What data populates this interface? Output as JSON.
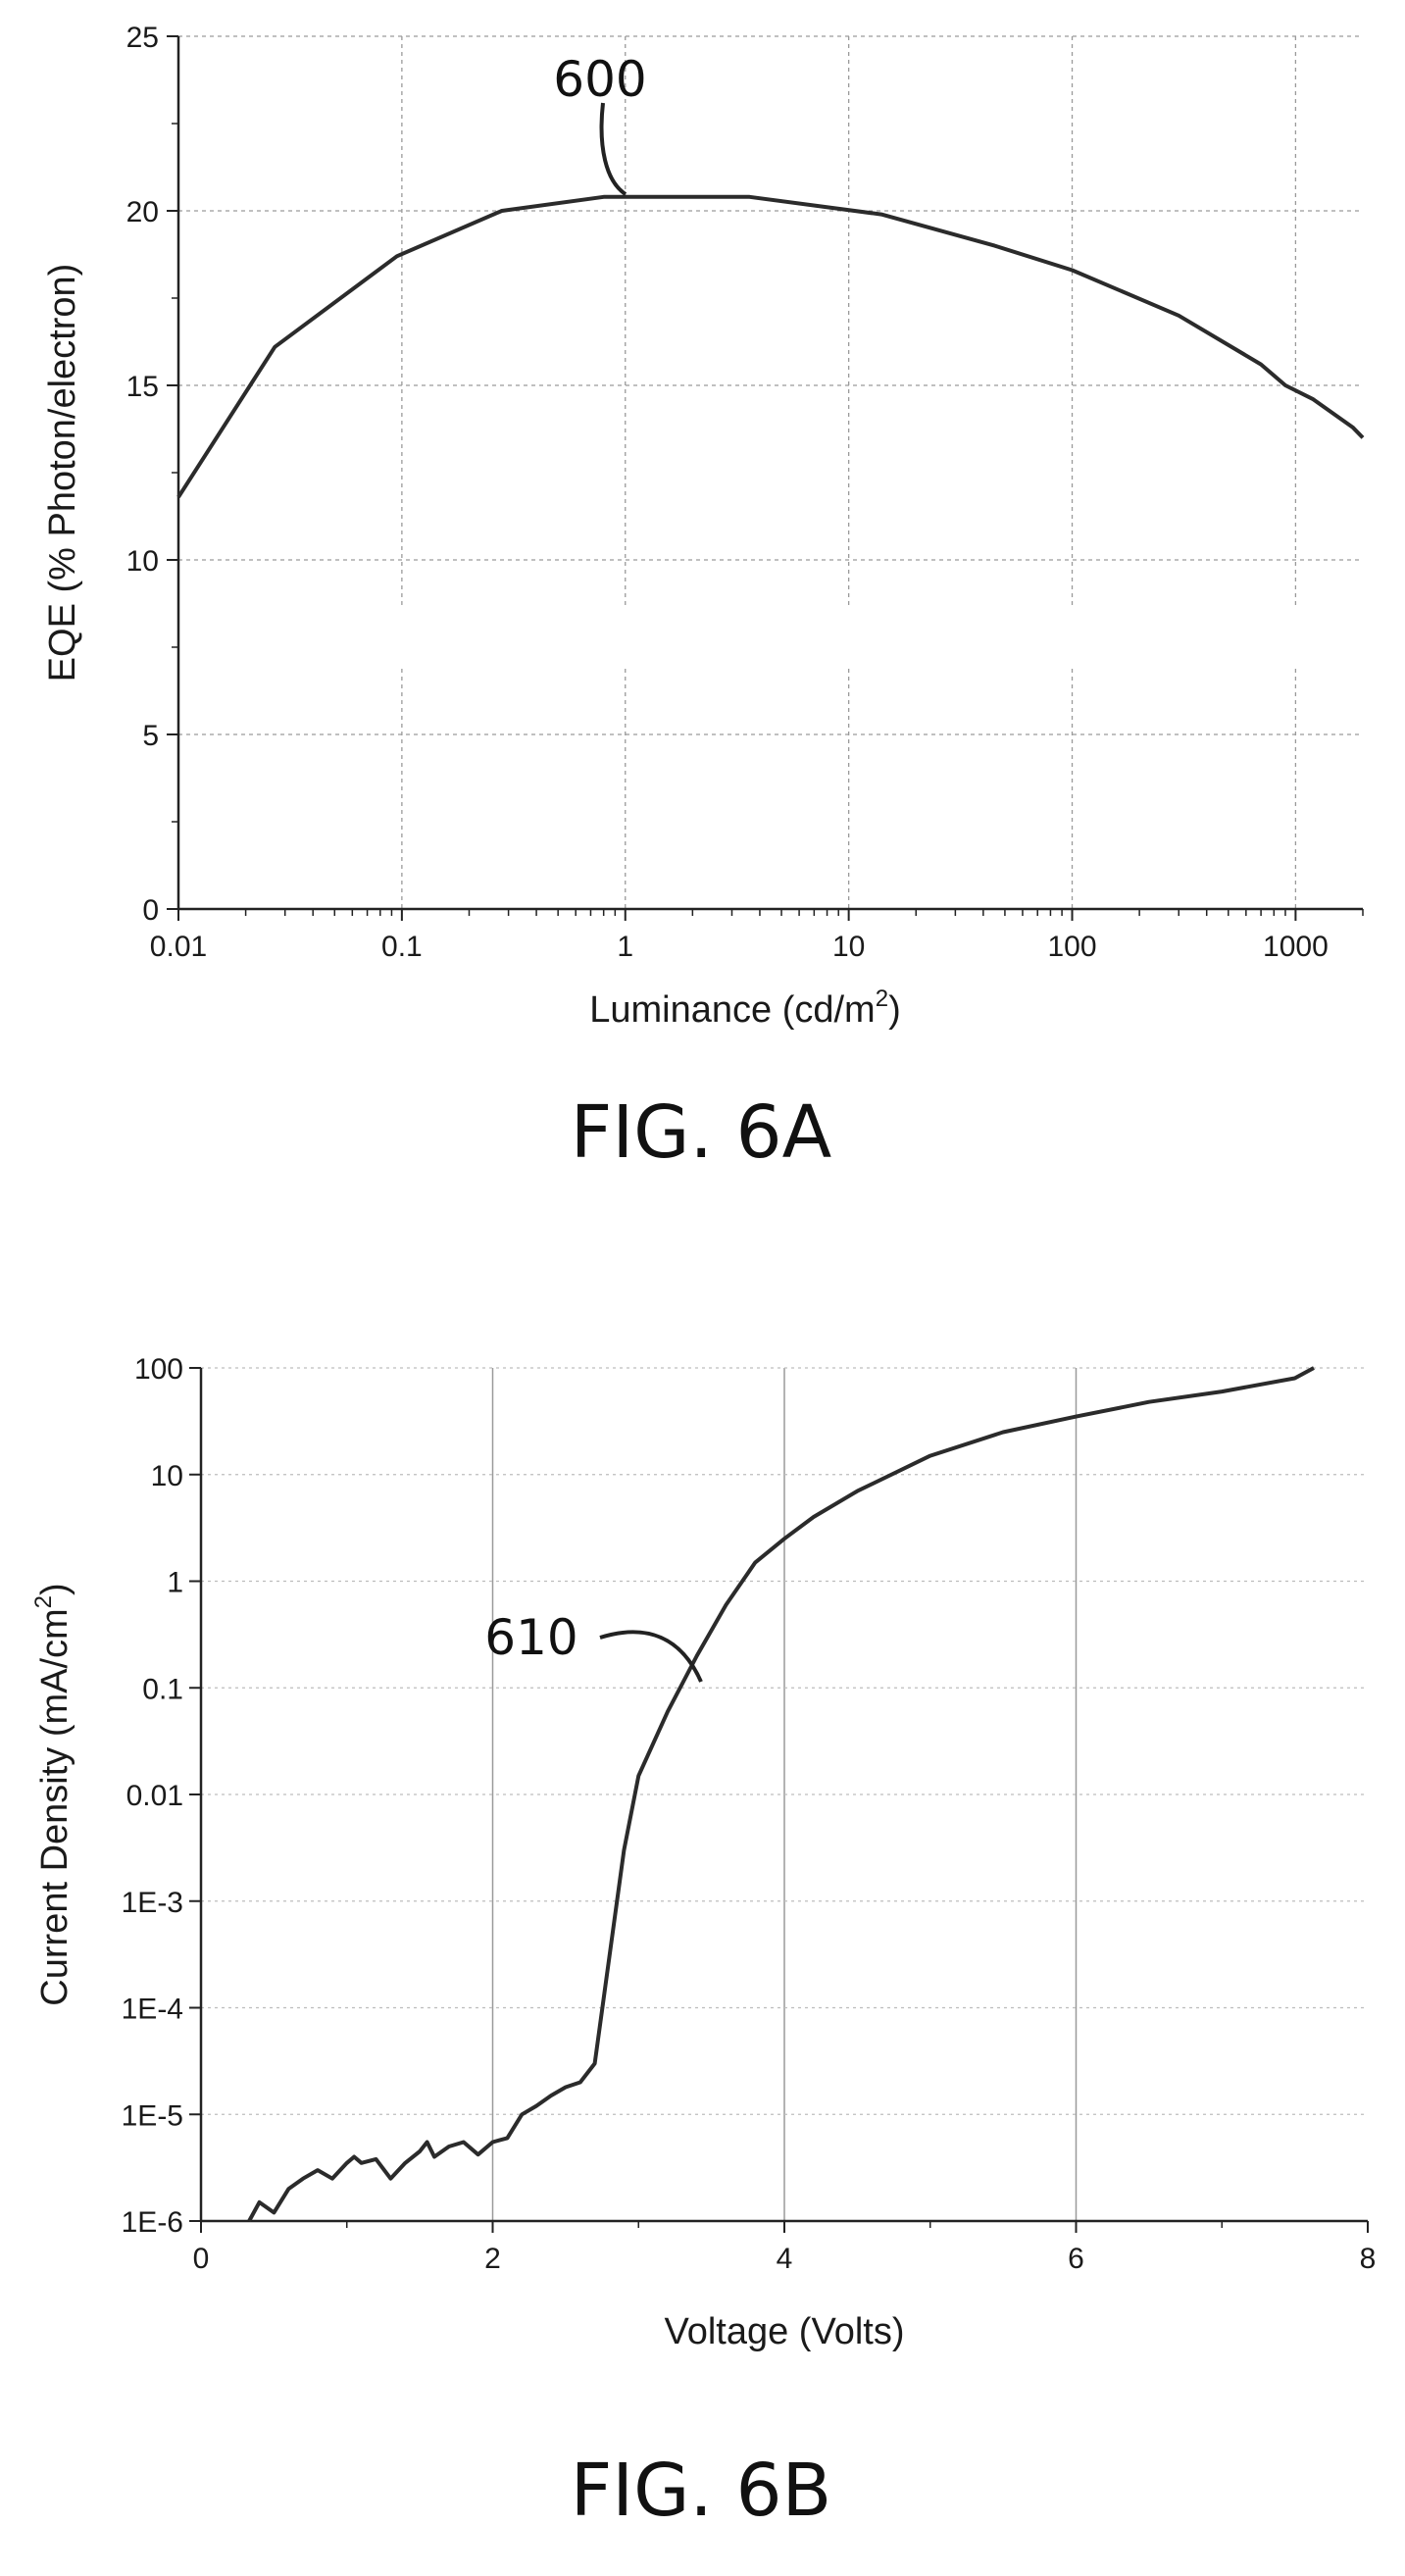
{
  "figures": [
    {
      "caption": "FIG. 6A",
      "callout": "600",
      "ylabel": "EQE (% Photon/electron)",
      "xlabel_main": "Luminance (cd/m",
      "xlabel_sup": "2",
      "xlabel_end": ")"
    },
    {
      "caption": "FIG. 6B",
      "callout": "610",
      "ylabel_main": "Current Density (mA/cm",
      "ylabel_sup": "2",
      "ylabel_end": ")",
      "xlabel": "Voltage (Volts)"
    }
  ],
  "chart_data": [
    {
      "type": "line",
      "xlabel": "Luminance (cd/m2)",
      "ylabel": "EQE (% Photon/electron)",
      "xscale": "log",
      "xlim": [
        0.01,
        2000
      ],
      "ylim": [
        0,
        25
      ],
      "grid": true,
      "x_ticks": [
        0.01,
        0.1,
        1,
        10,
        100,
        1000
      ],
      "x_tick_labels": [
        "0.01",
        "0.1",
        "1",
        "10",
        "100",
        "1000"
      ],
      "y_ticks": [
        0,
        5,
        10,
        15,
        20,
        25
      ],
      "y_tick_labels": [
        "0",
        "5",
        "10",
        "15",
        "20",
        "25"
      ],
      "series": [
        {
          "x": [
            0.01,
            0.027,
            0.095,
            0.28,
            0.8,
            1.0,
            1.6,
            3.6,
            14,
            45,
            100,
            300,
            700,
            900,
            1200,
            1800,
            2000
          ],
          "y": [
            11.8,
            16.1,
            18.7,
            20.0,
            20.4,
            20.4,
            20.4,
            20.4,
            19.9,
            19.0,
            18.3,
            17.0,
            15.6,
            15.0,
            14.6,
            13.8,
            13.5
          ]
        }
      ],
      "annotations": [
        {
          "text": "600",
          "x": 1.0,
          "y": 20.4
        }
      ]
    },
    {
      "type": "line",
      "xlabel": "Voltage (Volts)",
      "ylabel": "Current Density (mA/cm2)",
      "yscale": "log",
      "xlim": [
        0,
        8
      ],
      "ylim": [
        1e-06,
        100
      ],
      "grid": true,
      "x_ticks": [
        0,
        2,
        4,
        6,
        8
      ],
      "x_tick_labels": [
        "0",
        "2",
        "4",
        "6",
        "8"
      ],
      "y_ticks": [
        1e-06,
        1e-05,
        0.0001,
        0.001,
        0.01,
        0.1,
        1,
        10,
        100
      ],
      "y_tick_labels": [
        "1E-6",
        "1E-5",
        "1E-4",
        "1E-3",
        "0.01",
        "0.1",
        "1",
        "10",
        "100"
      ],
      "series": [
        {
          "x": [
            0.33,
            0.4,
            0.5,
            0.6,
            0.7,
            0.8,
            0.9,
            1.0,
            1.05,
            1.1,
            1.2,
            1.3,
            1.4,
            1.5,
            1.55,
            1.6,
            1.7,
            1.8,
            1.9,
            2.0,
            2.1,
            2.2,
            2.3,
            2.4,
            2.5,
            2.6,
            2.7,
            2.8,
            2.9,
            3.0,
            3.2,
            3.4,
            3.6,
            3.8,
            4.0,
            4.2,
            4.5,
            5.0,
            5.5,
            6.0,
            6.5,
            7.0,
            7.5,
            7.63
          ],
          "y": [
            1e-06,
            1.5e-06,
            1.2e-06,
            2e-06,
            2.5e-06,
            3e-06,
            2.5e-06,
            3.5e-06,
            4e-06,
            3.5e-06,
            3.8e-06,
            2.5e-06,
            3.5e-06,
            4.5e-06,
            5.5e-06,
            4e-06,
            5e-06,
            5.5e-06,
            4.2e-06,
            5.5e-06,
            6e-06,
            1e-05,
            1.2e-05,
            1.5e-05,
            1.8e-05,
            2e-05,
            3e-05,
            0.0003,
            0.003,
            0.015,
            0.06,
            0.2,
            0.6,
            1.5,
            2.5,
            4,
            7,
            15,
            25,
            35,
            48,
            60,
            80,
            100
          ]
        }
      ],
      "annotations": [
        {
          "text": "610",
          "x": 3.4,
          "y": 0.1
        }
      ]
    }
  ]
}
